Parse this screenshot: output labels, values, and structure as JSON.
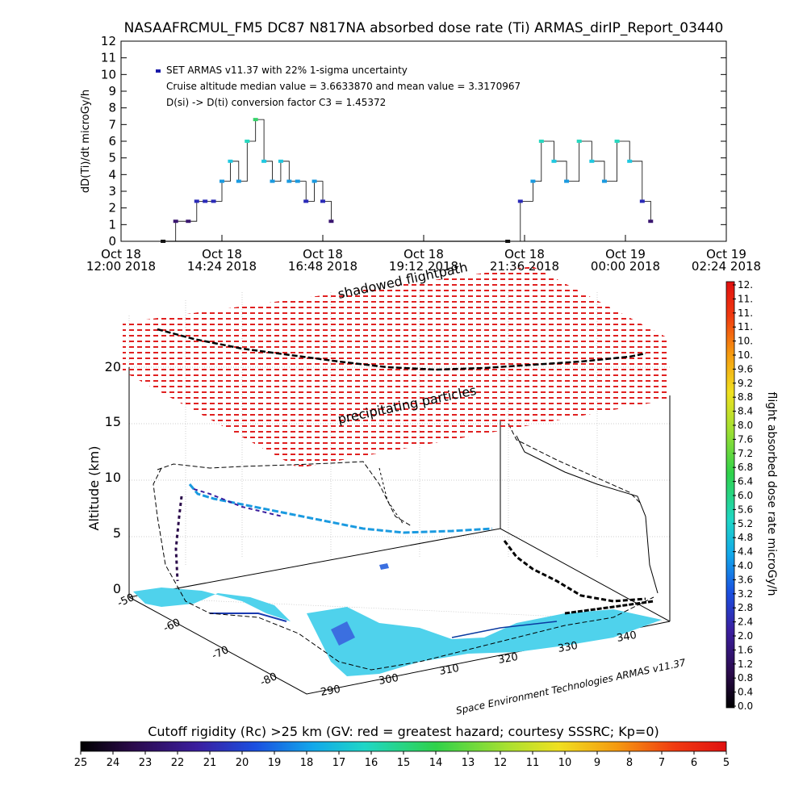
{
  "title": "NASAAFRCMUL_FM5 DC87 N817NA absorbed dose rate (Ti) ARMAS_dirIP_Report_03440",
  "chart_data": [
    {
      "type": "scatter",
      "panel": "dose-rate-time-series",
      "ylabel": "dD(Ti)/dt microGy/h",
      "ylim": [
        0,
        12
      ],
      "yticks": [
        "0",
        "1",
        "2",
        "3",
        "4",
        "5",
        "6",
        "7",
        "8",
        "9",
        "10",
        "11",
        "12"
      ],
      "xticks": [
        {
          "line1": "Oct 18",
          "line2": "12:00 2018"
        },
        {
          "line1": "Oct 18",
          "line2": "14:24 2018"
        },
        {
          "line1": "Oct 18",
          "line2": "16:48 2018"
        },
        {
          "line1": "Oct 18",
          "line2": "19:12 2018"
        },
        {
          "line1": "Oct 18",
          "line2": "21:36 2018"
        },
        {
          "line1": "Oct 19",
          "line2": "00:00 2018"
        },
        {
          "line1": "Oct 19",
          "line2": "02:24 2018"
        }
      ],
      "legend": [
        "SET ARMAS v11.37 with 22% 1-sigma uncertainty",
        "Cruise altitude median value = 3.6633870 and mean value = 3.3170967",
        "D(si) -> D(ti) conversion factor C3 = 1.45372"
      ],
      "legend_placement": "top-left",
      "series": [
        {
          "x_hours": [
            13.0,
            13.3,
            13.6,
            13.8,
            14.0,
            14.2,
            14.4,
            14.6,
            14.8,
            15.0,
            15.2,
            15.4,
            15.6,
            15.8,
            16.0,
            16.2,
            16.4,
            16.6,
            16.8,
            17.0
          ],
          "y": [
            0.0,
            1.2,
            1.2,
            2.4,
            2.4,
            2.4,
            3.6,
            4.8,
            3.6,
            6.0,
            7.3,
            4.8,
            3.6,
            4.8,
            3.6,
            3.6,
            2.4,
            3.6,
            2.4,
            1.2
          ]
        },
        {
          "x_hours": [
            21.2,
            21.5,
            21.8,
            22.0,
            22.3,
            22.6,
            22.9,
            23.2,
            23.5,
            23.8,
            24.1,
            24.4,
            24.6
          ],
          "y": [
            0.0,
            2.4,
            3.6,
            6.0,
            4.8,
            3.6,
            6.0,
            4.8,
            3.6,
            6.0,
            4.8,
            2.4,
            1.2
          ]
        }
      ],
      "grid": false
    },
    {
      "type": "scatter",
      "panel": "3d-flight-track",
      "zlabel": "Altitude (km)",
      "zticks": [
        "0",
        "5",
        "10",
        "15",
        "20"
      ],
      "lat_ticks": [
        "-50",
        "-60",
        "-70",
        "-80"
      ],
      "lon_ticks": [
        "290",
        "300",
        "310",
        "320",
        "330",
        "340"
      ],
      "annotations": [
        "shadowed flightpath",
        "precipitating particles"
      ],
      "credit": "Space Environment Technologies ARMAS v11.37",
      "grid": true
    },
    {
      "type": "heatmap",
      "panel": "dose-rate-colorbar",
      "label": "flight absorbed dose rate microGy/h",
      "ticks": [
        "0.0",
        "0.4",
        "0.8",
        "1.2",
        "1.6",
        "2.0",
        "2.4",
        "2.8",
        "3.2",
        "3.6",
        "4.0",
        "4.4",
        "4.8",
        "5.2",
        "5.6",
        "6.0",
        "6.4",
        "6.8",
        "7.2",
        "7.6",
        "8.0",
        "8.4",
        "8.8",
        "9.2",
        "9.6",
        "10.",
        "10.",
        "11.",
        "11.",
        "11.",
        "12."
      ]
    },
    {
      "type": "heatmap",
      "panel": "cutoff-rigidity-colorbar",
      "label": "Cutoff rigidity (Rc) >25 km (GV: red = greatest hazard; courtesy SSSRC; Kp=0)",
      "ticks": [
        "25",
        "24",
        "23",
        "22",
        "21",
        "20",
        "19",
        "18",
        "17",
        "16",
        "15",
        "14",
        "13",
        "12",
        "11",
        "10",
        "9",
        "8",
        "7",
        "6",
        "5"
      ]
    }
  ]
}
